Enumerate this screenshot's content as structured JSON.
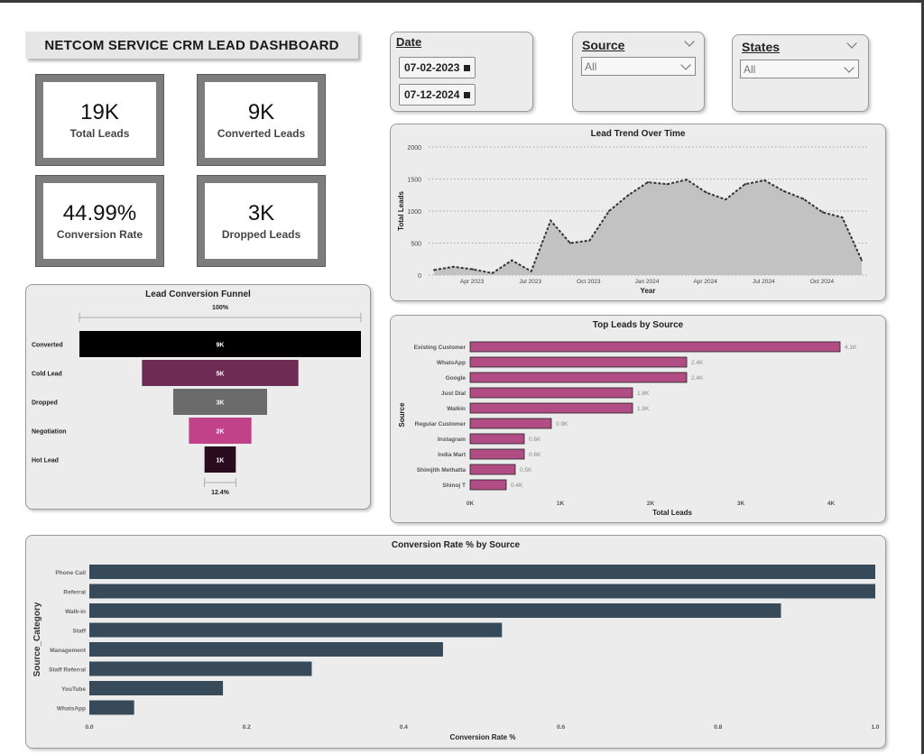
{
  "dashboard": {
    "title": "NETCOM SERVICE CRM LEAD DASHBOARD"
  },
  "kpis": [
    {
      "value": "19K",
      "label": "Total Leads"
    },
    {
      "value": "9K",
      "label": "Converted Leads"
    },
    {
      "value": "44.99%",
      "label": "Conversion Rate"
    },
    {
      "value": "3K",
      "label": "Dropped Leads"
    }
  ],
  "filters": {
    "date": {
      "title": "Date",
      "start": "07-02-2023",
      "end": "07-12-2024",
      "icon": "calendar-icon"
    },
    "source": {
      "title": "Source",
      "value": "All",
      "icon": "chevron-down-icon"
    },
    "states": {
      "title": "States",
      "value": "All",
      "icon": "chevron-down-icon"
    }
  },
  "colors": {
    "funnel_converted": "#000000",
    "funnel_cold": "#6e2c54",
    "funnel_dropped": "#6b6b6b",
    "funnel_negotiation": "#c2428a",
    "funnel_hot": "#2a0c1e",
    "source_bar": "#b24c84",
    "conversion_bar": "#374a5a",
    "area_fill": "#c2c2c2",
    "line": "#333333"
  },
  "chart_data": [
    {
      "id": "trend",
      "type": "area",
      "title": "Lead Trend Over Time",
      "xlabel": "Year",
      "ylabel": "Total Leads",
      "ylim": [
        0,
        2000
      ],
      "y_ticks": [
        0,
        500,
        1000,
        1500,
        2000
      ],
      "x_tick_labels": [
        "Apr 2023",
        "Jul 2023",
        "Oct 2023",
        "Jan 2024",
        "Apr 2024",
        "Jul 2024",
        "Oct 2024"
      ],
      "x": [
        "2023-02",
        "2023-03",
        "2023-04",
        "2023-05",
        "2023-06",
        "2023-07",
        "2023-08",
        "2023-09",
        "2023-10",
        "2023-11",
        "2023-12",
        "2024-01",
        "2024-02",
        "2024-03",
        "2024-04",
        "2024-05",
        "2024-06",
        "2024-07",
        "2024-08",
        "2024-09",
        "2024-10",
        "2024-11",
        "2024-12"
      ],
      "values": [
        80,
        130,
        90,
        30,
        230,
        60,
        850,
        500,
        540,
        1000,
        1250,
        1450,
        1420,
        1490,
        1290,
        1180,
        1420,
        1480,
        1310,
        1190,
        980,
        900,
        230
      ],
      "grid": true
    },
    {
      "id": "funnel",
      "type": "bar",
      "title": "Lead Conversion Funnel",
      "top_label": "100%",
      "bottom_label": "12.4%",
      "categories": [
        "Converted",
        "Cold Lead",
        "Dropped",
        "Negotiation",
        "Hot Lead"
      ],
      "values": [
        9000,
        5000,
        3000,
        2000,
        1000
      ],
      "data_labels": [
        "9K",
        "5K",
        "3K",
        "2K",
        "1K"
      ]
    },
    {
      "id": "sources",
      "type": "bar",
      "title": "Top Leads by Source",
      "xlabel": "Total Leads",
      "ylabel": "Source",
      "xlim": [
        0,
        4000
      ],
      "x_tick_labels": [
        "0K",
        "1K",
        "2K",
        "3K",
        "4K"
      ],
      "categories": [
        "Existing Customer",
        "WhatsApp",
        "Google",
        "Just Dial",
        "Walkin",
        "Regular Customer",
        "Instagram",
        "India Mart",
        "Shimjith Methatta",
        "Shinoj T"
      ],
      "values": [
        4100,
        2400,
        2400,
        1800,
        1800,
        900,
        600,
        600,
        500,
        400
      ],
      "data_labels": [
        "4.1K",
        "2.4K",
        "2.4K",
        "1.8K",
        "1.8K",
        "0.9K",
        "0.6K",
        "0.6K",
        "0.5K",
        "0.4K"
      ]
    },
    {
      "id": "conversion",
      "type": "bar",
      "title": "Conversion Rate % by Source",
      "xlabel": "Conversion Rate %",
      "ylabel": "Source_Category",
      "xlim": [
        0,
        1.0
      ],
      "x_tick_labels": [
        "0.0",
        "0.2",
        "0.4",
        "0.6",
        "0.8",
        "1.0"
      ],
      "categories": [
        "Phone Call",
        "Referral",
        "Walk-in",
        "Staff",
        "Management",
        "Staff Referral",
        "YouTube",
        "WhatsApp"
      ],
      "values": [
        1.0,
        1.0,
        0.88,
        0.525,
        0.45,
        0.283,
        0.17,
        0.057
      ]
    }
  ]
}
